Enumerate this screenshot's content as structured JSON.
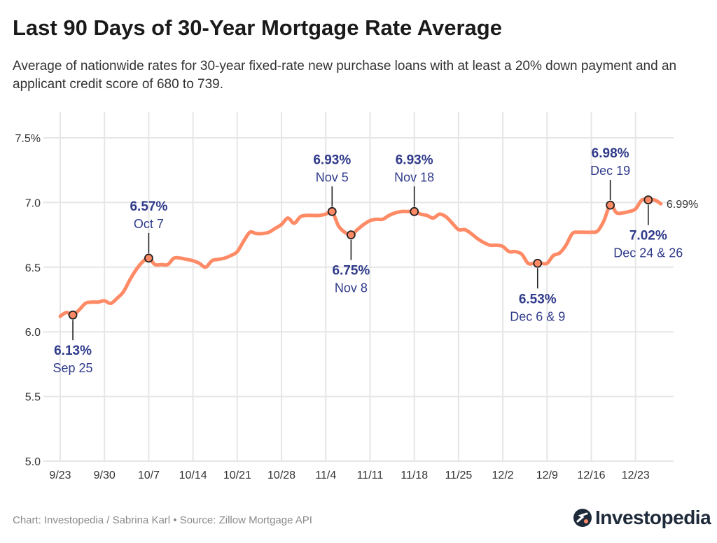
{
  "title": "Last 90 Days of 30-Year Mortgage Rate Average",
  "subtitle": "Average of nationwide rates for 30-year fixed-rate new purchase loans with at least a 20% down payment and an applicant credit score of 680 to 739.",
  "footer": "Chart: Investopedia / Sabrina Karl • Source: Zillow Mortgage API",
  "logo": {
    "text": "Investopedia",
    "icon": "investopedia-logo-icon"
  },
  "colors": {
    "line": "#ff8a66",
    "annotation": "#2f3a8a",
    "grid": "#e6e6e6"
  },
  "chart_data": {
    "type": "line",
    "title": "Last 90 Days of 30-Year Mortgage Rate Average",
    "xlabel": "",
    "ylabel": "",
    "ylim": [
      5.0,
      7.5
    ],
    "grid": true,
    "y_ticks": [
      {
        "value": 7.5,
        "label": "7.5%"
      },
      {
        "value": 7.0,
        "label": "7.0"
      },
      {
        "value": 6.5,
        "label": "6.5"
      },
      {
        "value": 6.0,
        "label": "6.0"
      },
      {
        "value": 5.5,
        "label": "5.5"
      },
      {
        "value": 5.0,
        "label": "5.0"
      }
    ],
    "x_ticks": [
      "9/23",
      "9/30",
      "10/7",
      "10/14",
      "10/21",
      "10/28",
      "11/4",
      "11/11",
      "11/18",
      "11/25",
      "12/2",
      "12/9",
      "12/16",
      "12/23"
    ],
    "x": [
      "9/23",
      "9/24",
      "9/25",
      "9/26",
      "9/27",
      "9/28",
      "9/29",
      "9/30",
      "10/1",
      "10/2",
      "10/3",
      "10/4",
      "10/5",
      "10/6",
      "10/7",
      "10/8",
      "10/9",
      "10/10",
      "10/11",
      "10/12",
      "10/13",
      "10/14",
      "10/15",
      "10/16",
      "10/17",
      "10/18",
      "10/19",
      "10/20",
      "10/21",
      "10/22",
      "10/23",
      "10/24",
      "10/25",
      "10/26",
      "10/27",
      "10/28",
      "10/29",
      "10/30",
      "10/31",
      "11/1",
      "11/2",
      "11/3",
      "11/4",
      "11/5",
      "11/6",
      "11/7",
      "11/8",
      "11/9",
      "11/10",
      "11/11",
      "11/12",
      "11/13",
      "11/14",
      "11/15",
      "11/16",
      "11/17",
      "11/18",
      "11/19",
      "11/20",
      "11/21",
      "11/22",
      "11/23",
      "11/24",
      "11/25",
      "11/26",
      "11/27",
      "11/28",
      "11/29",
      "11/30",
      "12/1",
      "12/2",
      "12/3",
      "12/4",
      "12/5",
      "12/6",
      "12/7",
      "12/8",
      "12/9",
      "12/10",
      "12/11",
      "12/12",
      "12/13",
      "12/14",
      "12/15",
      "12/16",
      "12/17",
      "12/18",
      "12/19",
      "12/20",
      "12/21",
      "12/22",
      "12/23",
      "12/24",
      "12/25",
      "12/26",
      "12/27"
    ],
    "values": [
      6.12,
      6.15,
      6.13,
      6.17,
      6.22,
      6.23,
      6.23,
      6.24,
      6.22,
      6.26,
      6.31,
      6.4,
      6.48,
      6.54,
      6.57,
      6.52,
      6.52,
      6.52,
      6.57,
      6.57,
      6.56,
      6.55,
      6.53,
      6.5,
      6.55,
      6.56,
      6.57,
      6.59,
      6.62,
      6.7,
      6.77,
      6.76,
      6.76,
      6.77,
      6.8,
      6.83,
      6.88,
      6.84,
      6.89,
      6.9,
      6.9,
      6.9,
      6.91,
      6.93,
      6.82,
      6.77,
      6.75,
      6.79,
      6.83,
      6.86,
      6.87,
      6.87,
      6.9,
      6.92,
      6.93,
      6.93,
      6.93,
      6.91,
      6.9,
      6.88,
      6.91,
      6.89,
      6.84,
      6.79,
      6.79,
      6.76,
      6.72,
      6.69,
      6.67,
      6.67,
      6.66,
      6.62,
      6.62,
      6.6,
      6.53,
      6.53,
      6.53,
      6.53,
      6.59,
      6.61,
      6.67,
      6.76,
      6.77,
      6.77,
      6.77,
      6.78,
      6.86,
      6.98,
      6.92,
      6.92,
      6.93,
      6.95,
      7.02,
      7.02,
      7.02,
      6.99
    ],
    "annotations": [
      {
        "dates": [
          "9/25"
        ],
        "value": 6.13,
        "value_label": "6.13%",
        "date_label": "Sep 25",
        "placement": "below"
      },
      {
        "dates": [
          "10/7"
        ],
        "value": 6.57,
        "value_label": "6.57%",
        "date_label": "Oct 7",
        "placement": "above"
      },
      {
        "dates": [
          "11/5"
        ],
        "value": 6.93,
        "value_label": "6.93%",
        "date_label": "Nov 5",
        "placement": "above"
      },
      {
        "dates": [
          "11/8"
        ],
        "value": 6.75,
        "value_label": "6.75%",
        "date_label": "Nov 8",
        "placement": "below"
      },
      {
        "dates": [
          "11/18"
        ],
        "value": 6.93,
        "value_label": "6.93%",
        "date_label": "Nov 18",
        "placement": "above"
      },
      {
        "dates": [
          "12/6",
          "12/9"
        ],
        "value": 6.53,
        "value_label": "6.53%",
        "date_label": "Dec 6 & 9",
        "placement": "below"
      },
      {
        "dates": [
          "12/19"
        ],
        "value": 6.98,
        "value_label": "6.98%",
        "date_label": "Dec 19",
        "placement": "above"
      },
      {
        "dates": [
          "12/24",
          "12/26"
        ],
        "value": 7.02,
        "value_label": "7.02%",
        "date_label": "Dec 24 & 26",
        "placement": "below"
      }
    ],
    "end_label": "6.99%"
  }
}
